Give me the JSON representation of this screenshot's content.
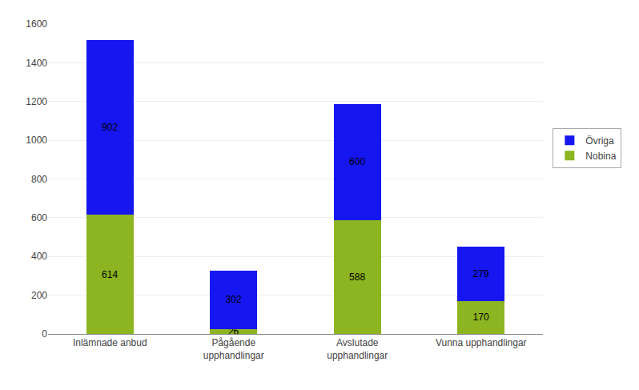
{
  "chart_data": {
    "type": "bar",
    "stacked": true,
    "categories": [
      "Inlämnade anbud",
      "Pågående\nupphandlingar",
      "Avslutade\nupphandlingar",
      "Vunna upphandlingar"
    ],
    "series": [
      {
        "name": "Nobina",
        "color": "#8db421",
        "values": [
          614,
          26,
          588,
          170
        ]
      },
      {
        "name": "Övriga",
        "color": "#1616f0",
        "values": [
          902,
          302,
          600,
          279
        ]
      }
    ],
    "ylim": [
      0,
      1600
    ],
    "yticks": [
      0,
      200,
      400,
      600,
      800,
      1000,
      1200,
      1400,
      1600
    ],
    "grid": true,
    "legend": "right",
    "data_labels": true
  }
}
